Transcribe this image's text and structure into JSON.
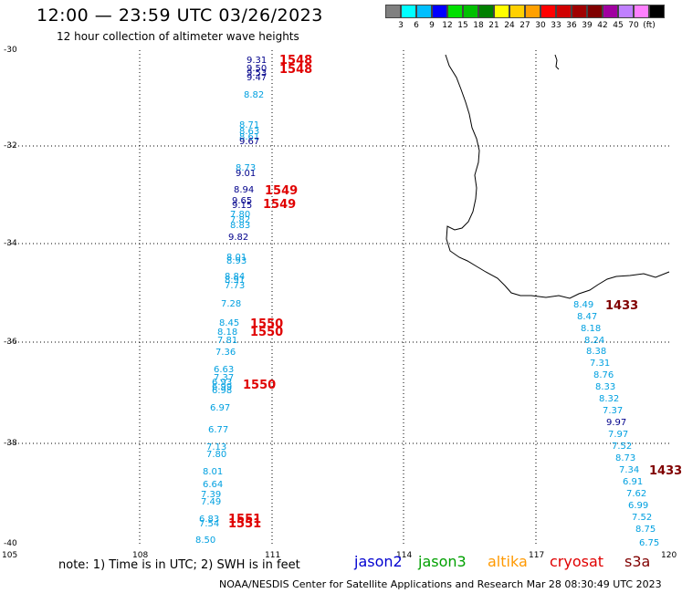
{
  "header": {
    "title": "12:00 — 23:59 UTC 03/26/2023",
    "subtitle": "12 hour collection of altimeter wave heights"
  },
  "scale": {
    "colors": [
      "#808080",
      "#00ffff",
      "#00bfff",
      "#0000ff",
      "#00e000",
      "#00c000",
      "#008000",
      "#ffff00",
      "#ffd000",
      "#ffa000",
      "#ff0000",
      "#d00000",
      "#a00000",
      "#800000",
      "#a000a0",
      "#c080ff",
      "#ff80ff",
      "#000000"
    ],
    "labels": [
      "3",
      "6",
      "9",
      "12",
      "15",
      "18",
      "21",
      "24",
      "27",
      "30",
      "33",
      "36",
      "39",
      "42",
      "45",
      "70",
      "(ft)"
    ]
  },
  "axes": {
    "lat_labels": [
      "-30",
      "-32",
      "-34",
      "-36",
      "-38",
      "-40"
    ],
    "lon_labels": [
      "105",
      "108",
      "111",
      "114",
      "117",
      "120"
    ]
  },
  "note": "note:  1) Time is in UTC; 2) SWH is in feet",
  "missions": [
    {
      "name": "jason2",
      "color": "#0000d0"
    },
    {
      "name": "jason3",
      "color": "#00a000"
    },
    {
      "name": "altika",
      "color": "#ff9900"
    },
    {
      "name": "cryosat",
      "color": "#e00000"
    },
    {
      "name": "s3a",
      "color": "#800000"
    }
  ],
  "credit": "NOAA/NESDIS Center for Satellite Applications and Research    Mar 28 08:30:49 UTC 2023",
  "colors": {
    "light": "#00a0e0",
    "dark": "#00008b",
    "cryosat": "#e00000",
    "s3a": "#800000"
  },
  "track1": [
    {
      "v": "9.31",
      "c": "dark"
    },
    {
      "v": "9.50",
      "c": "dark"
    },
    {
      "v": "9.53",
      "c": "dark"
    },
    {
      "v": "9.47",
      "c": "dark"
    },
    {
      "v": "8.82",
      "c": "light"
    },
    {
      "v": "8.71",
      "c": "light"
    },
    {
      "v": "8.63",
      "c": "light"
    },
    {
      "v": "8.61",
      "c": "light"
    },
    {
      "v": "9.67",
      "c": "dark"
    },
    {
      "v": "8.73",
      "c": "light"
    },
    {
      "v": "9.01",
      "c": "dark"
    },
    {
      "v": "8.94",
      "c": "dark"
    },
    {
      "v": "9.65",
      "c": "dark"
    },
    {
      "v": "9.15",
      "c": "dark"
    },
    {
      "v": "7.80",
      "c": "light"
    },
    {
      "v": "7.82",
      "c": "light"
    },
    {
      "v": "8.83",
      "c": "light"
    },
    {
      "v": "9.82",
      "c": "dark"
    },
    {
      "v": "8.01",
      "c": "light"
    },
    {
      "v": "8.93",
      "c": "light"
    },
    {
      "v": "8.84",
      "c": "light"
    },
    {
      "v": "8.91",
      "c": "light"
    },
    {
      "v": "7.73",
      "c": "light"
    },
    {
      "v": "7.28",
      "c": "light"
    },
    {
      "v": "8.45",
      "c": "light"
    },
    {
      "v": "8.18",
      "c": "light"
    },
    {
      "v": "7.81",
      "c": "light"
    },
    {
      "v": "7.36",
      "c": "light"
    },
    {
      "v": "6.63",
      "c": "light"
    },
    {
      "v": "7.37",
      "c": "light"
    },
    {
      "v": "6.93",
      "c": "light"
    },
    {
      "v": "6.99",
      "c": "light"
    },
    {
      "v": "6.98",
      "c": "light"
    },
    {
      "v": "6.97",
      "c": "light"
    },
    {
      "v": "6.77",
      "c": "light"
    },
    {
      "v": "7.13",
      "c": "light"
    },
    {
      "v": "7.80",
      "c": "light"
    },
    {
      "v": "8.01",
      "c": "light"
    },
    {
      "v": "6.64",
      "c": "light"
    },
    {
      "v": "7.39",
      "c": "light"
    },
    {
      "v": "7.49",
      "c": "light"
    },
    {
      "v": "6.83",
      "c": "light"
    },
    {
      "v": "7.54",
      "c": "light"
    },
    {
      "v": "8.50",
      "c": "light"
    }
  ],
  "track2": [
    {
      "v": "8.49",
      "c": "light"
    },
    {
      "v": "8.47",
      "c": "light"
    },
    {
      "v": "8.18",
      "c": "light"
    },
    {
      "v": "8.24",
      "c": "light"
    },
    {
      "v": "8.38",
      "c": "light"
    },
    {
      "v": "7.31",
      "c": "light"
    },
    {
      "v": "8.76",
      "c": "light"
    },
    {
      "v": "8.33",
      "c": "light"
    },
    {
      "v": "8.32",
      "c": "light"
    },
    {
      "v": "7.37",
      "c": "light"
    },
    {
      "v": "9.97",
      "c": "dark"
    },
    {
      "v": "7.97",
      "c": "light"
    },
    {
      "v": "7.52",
      "c": "light"
    },
    {
      "v": "8.73",
      "c": "light"
    },
    {
      "v": "7.34",
      "c": "light"
    },
    {
      "v": "6.91",
      "c": "light"
    },
    {
      "v": "7.62",
      "c": "light"
    },
    {
      "v": "6.99",
      "c": "light"
    },
    {
      "v": "7.52",
      "c": "light"
    },
    {
      "v": "8.75",
      "c": "light"
    },
    {
      "v": "6.75",
      "c": "light"
    }
  ],
  "times": [
    {
      "v": "1548",
      "c": "cryosat"
    },
    {
      "v": "1548",
      "c": "cryosat"
    },
    {
      "v": "1549",
      "c": "cryosat"
    },
    {
      "v": "1549",
      "c": "cryosat"
    },
    {
      "v": "1550",
      "c": "cryosat"
    },
    {
      "v": "1550",
      "c": "cryosat"
    },
    {
      "v": "1550",
      "c": "cryosat"
    },
    {
      "v": "1551",
      "c": "cryosat"
    },
    {
      "v": "1551",
      "c": "cryosat"
    },
    {
      "v": "1433",
      "c": "s3a"
    },
    {
      "v": "1433",
      "c": "s3a"
    }
  ]
}
